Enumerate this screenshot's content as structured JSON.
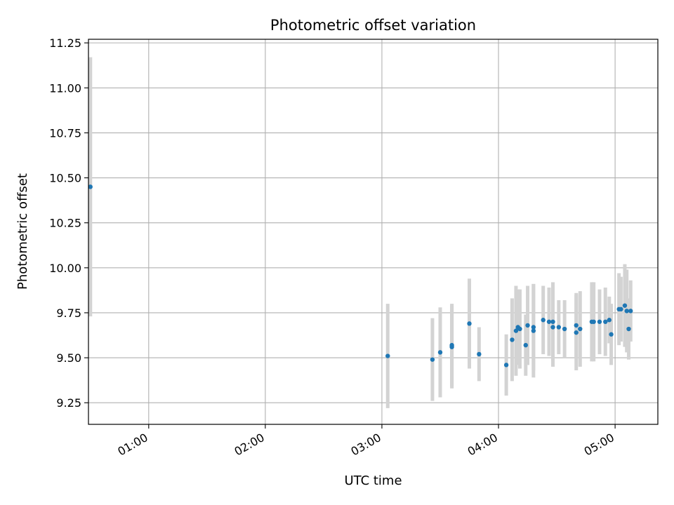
{
  "chart_data": {
    "type": "scatter",
    "title": "Photometric offset variation",
    "xlabel": "UTC time",
    "ylabel": "Photometric offset",
    "x_unit": "UTC time (HH:MM)",
    "xlim": [
      "00:29",
      "05:22"
    ],
    "ylim": [
      9.13,
      11.27
    ],
    "x_ticks": [
      "01:00",
      "02:00",
      "03:00",
      "04:00",
      "05:00"
    ],
    "y_ticks": [
      "9.25",
      "9.50",
      "9.75",
      "10.00",
      "10.25",
      "10.50",
      "10.75",
      "11.00",
      "11.25"
    ],
    "grid": true,
    "colors": {
      "point": "#1f77b4",
      "error_bar": "#d3d3d3",
      "grid": "#b0b0b0"
    },
    "points": [
      {
        "x": "00:30",
        "y": 10.45,
        "err": 0.72
      },
      {
        "x": "03:03",
        "y": 9.51,
        "err": 0.29
      },
      {
        "x": "03:26",
        "y": 9.49,
        "err": 0.23
      },
      {
        "x": "03:30",
        "y": 9.53,
        "err": 0.25
      },
      {
        "x": "03:36",
        "y": 9.56,
        "err": 0.23
      },
      {
        "x": "03:36",
        "y": 9.57,
        "err": 0.23
      },
      {
        "x": "03:45",
        "y": 9.69,
        "err": 0.25
      },
      {
        "x": "03:50",
        "y": 9.52,
        "err": 0.15
      },
      {
        "x": "04:04",
        "y": 9.46,
        "err": 0.17
      },
      {
        "x": "04:07",
        "y": 9.6,
        "err": 0.23
      },
      {
        "x": "04:09",
        "y": 9.65,
        "err": 0.25
      },
      {
        "x": "04:11",
        "y": 9.66,
        "err": 0.22
      },
      {
        "x": "04:10",
        "y": 9.67,
        "err": 0.21
      },
      {
        "x": "04:14",
        "y": 9.57,
        "err": 0.17
      },
      {
        "x": "04:15",
        "y": 9.68,
        "err": 0.22
      },
      {
        "x": "04:18",
        "y": 9.65,
        "err": 0.26
      },
      {
        "x": "04:18",
        "y": 9.67,
        "err": 0.24
      },
      {
        "x": "04:23",
        "y": 9.71,
        "err": 0.19
      },
      {
        "x": "04:26",
        "y": 9.7,
        "err": 0.19
      },
      {
        "x": "04:28",
        "y": 9.7,
        "err": 0.22
      },
      {
        "x": "04:28",
        "y": 9.67,
        "err": 0.22
      },
      {
        "x": "04:31",
        "y": 9.67,
        "err": 0.15
      },
      {
        "x": "04:34",
        "y": 9.66,
        "err": 0.16
      },
      {
        "x": "04:40",
        "y": 9.68,
        "err": 0.18
      },
      {
        "x": "04:40",
        "y": 9.64,
        "err": 0.21
      },
      {
        "x": "04:42",
        "y": 9.66,
        "err": 0.21
      },
      {
        "x": "04:48",
        "y": 9.7,
        "err": 0.22
      },
      {
        "x": "04:49",
        "y": 9.7,
        "err": 0.22
      },
      {
        "x": "04:52",
        "y": 9.7,
        "err": 0.18
      },
      {
        "x": "04:55",
        "y": 9.7,
        "err": 0.19
      },
      {
        "x": "04:57",
        "y": 9.71,
        "err": 0.13
      },
      {
        "x": "04:58",
        "y": 9.63,
        "err": 0.17
      },
      {
        "x": "05:02",
        "y": 9.77,
        "err": 0.2
      },
      {
        "x": "05:03",
        "y": 9.77,
        "err": 0.18
      },
      {
        "x": "05:05",
        "y": 9.79,
        "err": 0.23
      },
      {
        "x": "05:06",
        "y": 9.76,
        "err": 0.23
      },
      {
        "x": "05:07",
        "y": 9.66,
        "err": 0.17
      },
      {
        "x": "05:08",
        "y": 9.76,
        "err": 0.17
      }
    ]
  }
}
